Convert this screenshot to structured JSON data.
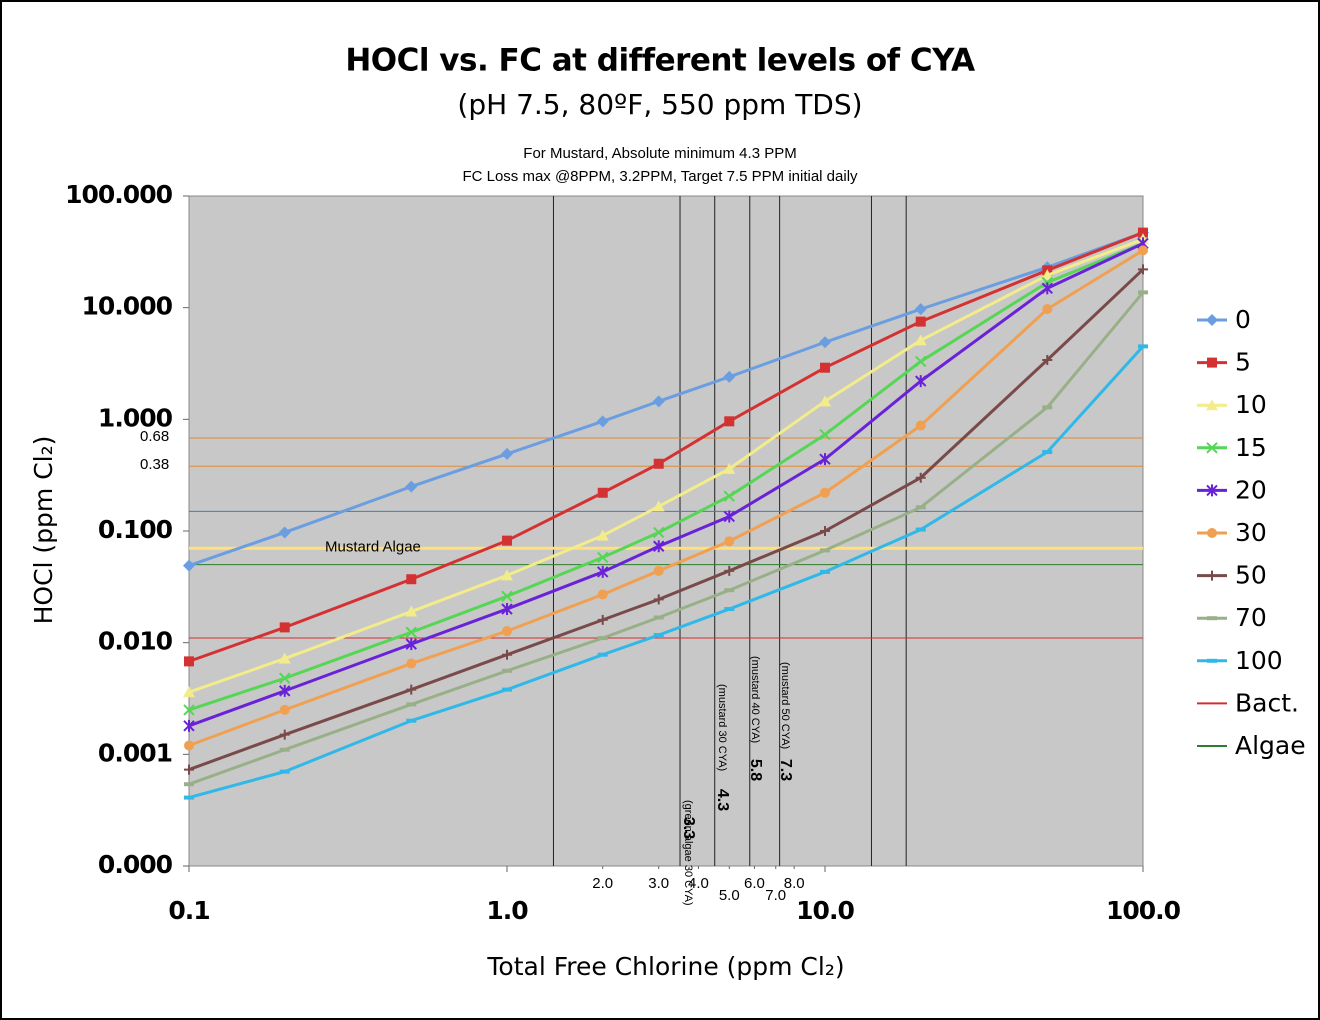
{
  "chart_data": {
    "type": "line",
    "title": "HOCl vs. FC at different levels of CYA",
    "subtitle": "(pH 7.5, 80ºF, 550 ppm TDS)",
    "notes": [
      "For Mustard, Absolute minimum 4.3 PPM",
      "FC Loss max @8PPM, 3.2PPM, Target 7.5 PPM initial daily"
    ],
    "x_label": "Total Free Chlorine (ppm Cl₂)",
    "y_label": "HOCl (ppm Cl₂)",
    "log_x": true,
    "log_y": true,
    "xlim": [
      0.1,
      100
    ],
    "ylim": [
      0.0001,
      100
    ],
    "xticks": [
      0.1,
      {
        "value": 1,
        "label": "1.0"
      },
      {
        "value": 10,
        "label": "10.0"
      },
      {
        "value": 100,
        "label": "100.0"
      }
    ],
    "xminor_ticks": [
      {
        "value": 2,
        "label": "2.0"
      },
      {
        "value": 3,
        "label": "3.0"
      },
      {
        "value": 4,
        "label": "4.0"
      },
      {
        "value": 5,
        "label": "5.0"
      },
      {
        "value": 6,
        "label": "6.0"
      },
      {
        "value": 7,
        "label": "7.0"
      },
      {
        "value": 8,
        "label": "8.0"
      }
    ],
    "yticks": [
      {
        "value": 100,
        "label": "100.000"
      },
      {
        "value": 10,
        "label": "10.000"
      },
      {
        "value": 1,
        "label": "1.000"
      },
      {
        "value": 0.1,
        "label": "0.100"
      },
      {
        "value": 0.01,
        "label": "0.010"
      },
      {
        "value": 0.001,
        "label": "0.001"
      },
      {
        "value": 0.0001,
        "label": "0.000"
      }
    ],
    "x": [
      0.1,
      0.2,
      0.5,
      1,
      2,
      3,
      5,
      10,
      20,
      50,
      100
    ],
    "series": [
      {
        "name": "0",
        "color": "#6a9ee0",
        "marker": "diamond",
        "values": [
          0.049,
          0.097,
          0.25,
          0.49,
          0.96,
          1.45,
          2.4,
          4.9,
          9.7,
          23,
          47
        ]
      },
      {
        "name": "5",
        "color": "#d43232",
        "marker": "square",
        "values": [
          0.0068,
          0.0137,
          0.037,
          0.082,
          0.22,
          0.4,
          0.96,
          2.9,
          7.5,
          21.6,
          47
        ]
      },
      {
        "name": "10",
        "color": "#f2ec8a",
        "marker": "triangle",
        "values": [
          0.0036,
          0.0072,
          0.019,
          0.04,
          0.091,
          0.166,
          0.36,
          1.45,
          5.1,
          19.5,
          41
        ]
      },
      {
        "name": "15",
        "color": "#55d655",
        "marker": "x",
        "values": [
          0.0025,
          0.0048,
          0.0124,
          0.026,
          0.058,
          0.097,
          0.205,
          0.73,
          3.3,
          16.8,
          37.6
        ]
      },
      {
        "name": "20",
        "color": "#6a22d8",
        "marker": "star",
        "values": [
          0.0018,
          0.0037,
          0.0097,
          0.02,
          0.043,
          0.073,
          0.135,
          0.44,
          2.2,
          14.9,
          37.6
        ]
      },
      {
        "name": "30",
        "color": "#f0a050",
        "marker": "circle",
        "values": [
          0.0012,
          0.0025,
          0.0065,
          0.0127,
          0.027,
          0.044,
          0.081,
          0.22,
          0.88,
          9.7,
          32.6
        ]
      },
      {
        "name": "50",
        "color": "#7a4a4a",
        "marker": "plus",
        "values": [
          0.00073,
          0.0015,
          0.0038,
          0.0078,
          0.016,
          0.0244,
          0.044,
          0.1,
          0.3,
          3.4,
          22
        ]
      },
      {
        "name": "70",
        "color": "#98b088",
        "marker": "dash",
        "values": [
          0.00054,
          0.0011,
          0.0028,
          0.0056,
          0.011,
          0.0168,
          0.0295,
          0.067,
          0.163,
          1.28,
          13.7
        ]
      },
      {
        "name": "100",
        "color": "#30b8e8",
        "marker": "dash",
        "values": [
          0.00041,
          0.0007,
          0.002,
          0.0038,
          0.0078,
          0.0117,
          0.02,
          0.043,
          0.103,
          0.51,
          4.5
        ]
      }
    ],
    "reference_lines": [
      {
        "value": 0.68,
        "label": "0.68",
        "color": "#e08a3a"
      },
      {
        "value": 0.38,
        "label": "0.38",
        "color": "#e08a3a"
      },
      {
        "value": 0.15,
        "color": "#3a7dc8"
      },
      {
        "value": 0.07,
        "text": "Mustard Algae",
        "color": "#ffe07a"
      },
      {
        "value": 0.05,
        "name": "Algae",
        "color": "#2e7d2e"
      },
      {
        "value": 0.011,
        "name": "Bact.",
        "color": "#d03030"
      }
    ],
    "legend_names": [
      "Bact.",
      "Algae"
    ],
    "legend_position": "right",
    "vlines": [
      {
        "value": 1.4
      },
      {
        "value": 3.5,
        "text": "(green algae 30 CYA)",
        "number": "3.3"
      },
      {
        "value": 4.5,
        "text": "(mustard 30 CYA)",
        "number": "4.3"
      },
      {
        "value": 5.8,
        "text": "(mustard 40 CYA)",
        "number": "5.8"
      },
      {
        "value": 7.2,
        "text": "(mustard 50 CYA)",
        "number": "7.3"
      },
      {
        "value": 14
      },
      {
        "value": 18
      }
    ]
  }
}
